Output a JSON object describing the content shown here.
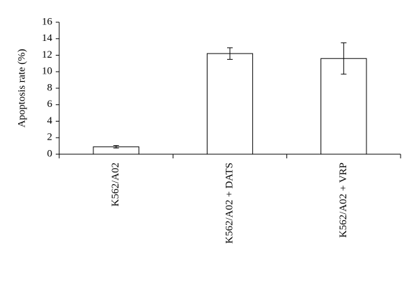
{
  "chart_data": {
    "type": "bar",
    "y_label": "Apoptosis rate (%)",
    "categories": [
      "K562/A02",
      "K562/A02 + DATS",
      "K562/A02 + VRP"
    ],
    "values": [
      0.9,
      12.2,
      11.6
    ],
    "errors": [
      0.15,
      0.7,
      1.9
    ],
    "color": "#ffffff",
    "ylim": [
      0,
      16
    ],
    "yticks": [
      0,
      2,
      4,
      6,
      8,
      10,
      12,
      14,
      16
    ],
    "grid": false
  }
}
